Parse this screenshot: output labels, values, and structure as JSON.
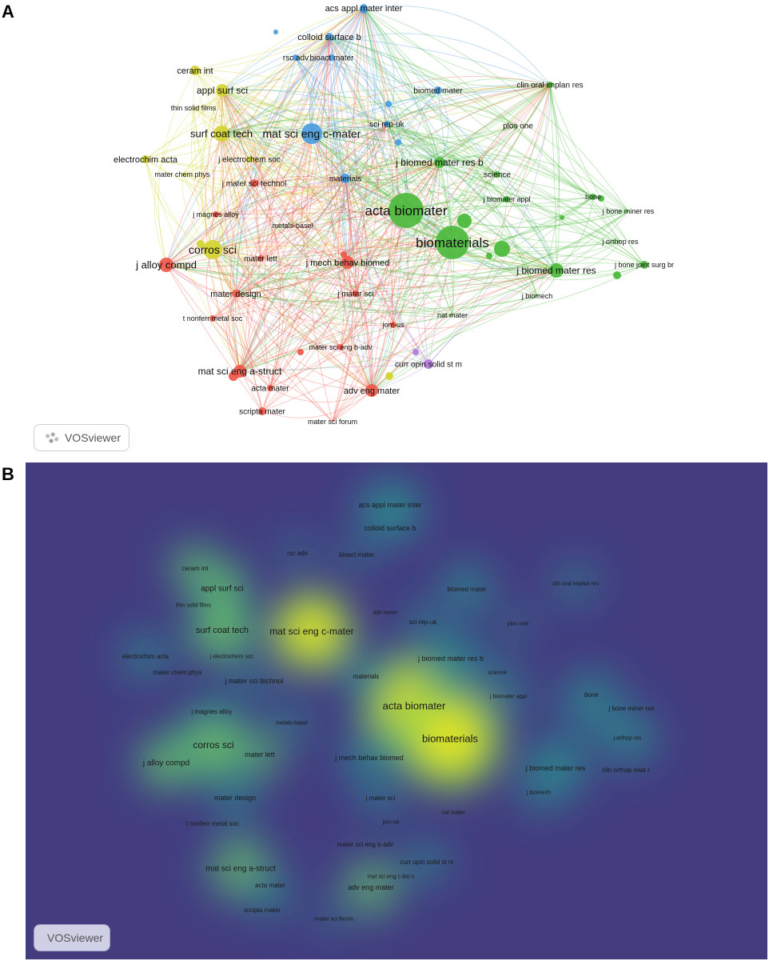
{
  "panel_a": {
    "letter": "A",
    "logo_label": "VOSviewer",
    "cluster_colors": {
      "red": "#f0584a",
      "green": "#4cba3c",
      "blue": "#4a9de0",
      "yellow": "#d4d433",
      "purple": "#b07cd8"
    },
    "nodes": [
      {
        "id": "acs",
        "label": "acs appl mater inter",
        "cluster": "blue"
      },
      {
        "id": "colloid",
        "label": "colloid surface b",
        "cluster": "blue"
      },
      {
        "id": "rscadv",
        "label": "rsc adv",
        "cluster": "blue"
      },
      {
        "id": "bioact",
        "label": "bioact mater",
        "cluster": "blue"
      },
      {
        "id": "biomedmater",
        "label": "biomed mater",
        "cluster": "blue"
      },
      {
        "id": "clinoral",
        "label": "clin oral implan res",
        "cluster": "green"
      },
      {
        "id": "ceram",
        "label": "ceram int",
        "cluster": "yellow"
      },
      {
        "id": "applsurf",
        "label": "appl surf sci",
        "cluster": "yellow"
      },
      {
        "id": "thinsolid",
        "label": "thin solid films",
        "cluster": "yellow"
      },
      {
        "id": "surfcoat",
        "label": "surf coat tech",
        "cluster": "yellow"
      },
      {
        "id": "matscic",
        "label": "mat sci eng c-mater",
        "cluster": "blue"
      },
      {
        "id": "scirep",
        "label": "sci rep-uk",
        "cluster": "blue"
      },
      {
        "id": "plosone",
        "label": "plos one",
        "cluster": "green"
      },
      {
        "id": "electrochim",
        "label": "electrochim acta",
        "cluster": "yellow"
      },
      {
        "id": "jelectrochem",
        "label": "j electrochem soc",
        "cluster": "yellow"
      },
      {
        "id": "jbiomedb",
        "label": "j biomed mater res b",
        "cluster": "green"
      },
      {
        "id": "materchem",
        "label": "mater chem phys",
        "cluster": "yellow"
      },
      {
        "id": "materials",
        "label": "materials",
        "cluster": "blue"
      },
      {
        "id": "science",
        "label": "science",
        "cluster": "green"
      },
      {
        "id": "jmatertech",
        "label": "j mater sci technol",
        "cluster": "red"
      },
      {
        "id": "jbiomaterappl",
        "label": "j biomater appl",
        "cluster": "green"
      },
      {
        "id": "bone",
        "label": "bone",
        "cluster": "green"
      },
      {
        "id": "actabio",
        "label": "acta biomater",
        "cluster": "green"
      },
      {
        "id": "jbonemin",
        "label": "j bone miner res",
        "cluster": "green"
      },
      {
        "id": "jmagnes",
        "label": "j magnes alloy",
        "cluster": "red"
      },
      {
        "id": "metals",
        "label": "metals-basel",
        "cluster": "red"
      },
      {
        "id": "biomaterials",
        "label": "biomaterials",
        "cluster": "green"
      },
      {
        "id": "jorthop",
        "label": "j orthop res",
        "cluster": "green"
      },
      {
        "id": "corros",
        "label": "corros sci",
        "cluster": "yellow"
      },
      {
        "id": "jbonejoint",
        "label": "j bone joint surg br",
        "cluster": "green"
      },
      {
        "id": "jalloy",
        "label": "j alloy compd",
        "cluster": "red"
      },
      {
        "id": "materlett",
        "label": "mater lett",
        "cluster": "red"
      },
      {
        "id": "jmechbehav",
        "label": "j mech behav biomed",
        "cluster": "red"
      },
      {
        "id": "jbiomedres",
        "label": "j biomed mater res",
        "cluster": "green"
      },
      {
        "id": "materdesign",
        "label": "mater design",
        "cluster": "red"
      },
      {
        "id": "jmatersci",
        "label": "j mater sci",
        "cluster": "red"
      },
      {
        "id": "jbiomech",
        "label": "j biomech",
        "cluster": "green"
      },
      {
        "id": "natmater",
        "label": "nat mater",
        "cluster": "green"
      },
      {
        "id": "tnonferr",
        "label": "t nonferr metal soc",
        "cluster": "red"
      },
      {
        "id": "jomus",
        "label": "jom-us",
        "cluster": "red"
      },
      {
        "id": "matscib",
        "label": "mater sci eng b-adv",
        "cluster": "red"
      },
      {
        "id": "curropin",
        "label": "curr opin solid st m",
        "cluster": "purple"
      },
      {
        "id": "matscia",
        "label": "mat sci eng a-struct",
        "cluster": "red"
      },
      {
        "id": "actamater",
        "label": "acta mater",
        "cluster": "red"
      },
      {
        "id": "advengmater",
        "label": "adv eng mater",
        "cluster": "red"
      },
      {
        "id": "scripta",
        "label": "scripta mater",
        "cluster": "red"
      },
      {
        "id": "matsciforum",
        "label": "mater sci forum",
        "cluster": "red"
      }
    ]
  },
  "panel_b": {
    "letter": "B",
    "logo_label": "VOSviewer",
    "colors": {
      "background": "#433d80",
      "mid": "#2c9a8a",
      "high": "#8fd147",
      "peak": "#fde725"
    },
    "nodes": [
      {
        "id": "acs",
        "label": "acs appl mater inter"
      },
      {
        "id": "colloid",
        "label": "colloid surface b"
      },
      {
        "id": "rscadv",
        "label": "rsc adv"
      },
      {
        "id": "bioact",
        "label": "bioact mater"
      },
      {
        "id": "ceram",
        "label": "ceram int"
      },
      {
        "id": "applsurf",
        "label": "appl surf sci"
      },
      {
        "id": "biomedmater",
        "label": "biomed mater"
      },
      {
        "id": "clinoral",
        "label": "clin oral implan res"
      },
      {
        "id": "thinsolid",
        "label": "thin solid films"
      },
      {
        "id": "advmater",
        "label": "adv mater"
      },
      {
        "id": "scirep",
        "label": "sci rep-uk"
      },
      {
        "id": "plosone",
        "label": "plos one"
      },
      {
        "id": "surfcoat",
        "label": "surf coat tech"
      },
      {
        "id": "matscic",
        "label": "mat sci eng c-mater"
      },
      {
        "id": "electrochim",
        "label": "electrochim acta"
      },
      {
        "id": "jelectrochem",
        "label": "j electrochem soc"
      },
      {
        "id": "jbiomedb",
        "label": "j biomed mater res b"
      },
      {
        "id": "materchem",
        "label": "mater chem phys"
      },
      {
        "id": "materials",
        "label": "materials"
      },
      {
        "id": "science",
        "label": "science"
      },
      {
        "id": "jmatertech",
        "label": "j mater sci technol"
      },
      {
        "id": "bone",
        "label": "bone"
      },
      {
        "id": "jbiomaterappl",
        "label": "j biomater appl"
      },
      {
        "id": "actabio",
        "label": "acta biomater"
      },
      {
        "id": "jmagnes",
        "label": "j magnes alloy"
      },
      {
        "id": "jbonemin",
        "label": "j bone miner res"
      },
      {
        "id": "metals",
        "label": "metals-basel"
      },
      {
        "id": "biomaterials",
        "label": "biomaterials"
      },
      {
        "id": "jorthop",
        "label": "j orthop res"
      },
      {
        "id": "corros",
        "label": "corros sci"
      },
      {
        "id": "jalloy",
        "label": "j alloy compd"
      },
      {
        "id": "materlett",
        "label": "mater lett"
      },
      {
        "id": "jmechbehav",
        "label": "j mech behav biomed"
      },
      {
        "id": "jbiomedres",
        "label": "j biomed mater res"
      },
      {
        "id": "clinorthop",
        "label": "clin orthop relat r"
      },
      {
        "id": "materdesign",
        "label": "mater design"
      },
      {
        "id": "jmatersci",
        "label": "j mater sci"
      },
      {
        "id": "jbiomech",
        "label": "j biomech"
      },
      {
        "id": "natmater",
        "label": "nat mater"
      },
      {
        "id": "tnonferr",
        "label": "t nonferr metal soc"
      },
      {
        "id": "jomus",
        "label": "jom-us"
      },
      {
        "id": "matscib",
        "label": "mater sci eng b-adv"
      },
      {
        "id": "curropin",
        "label": "curr opin solid st m"
      },
      {
        "id": "matscia",
        "label": "mat sci eng a-struct"
      },
      {
        "id": "matscicbio",
        "label": "mat sci eng c-bio s"
      },
      {
        "id": "actamater",
        "label": "acta mater"
      },
      {
        "id": "advengmater",
        "label": "adv eng mater"
      },
      {
        "id": "scripta",
        "label": "scripta mater"
      },
      {
        "id": "matsciforum",
        "label": "mater sci forum"
      }
    ]
  }
}
